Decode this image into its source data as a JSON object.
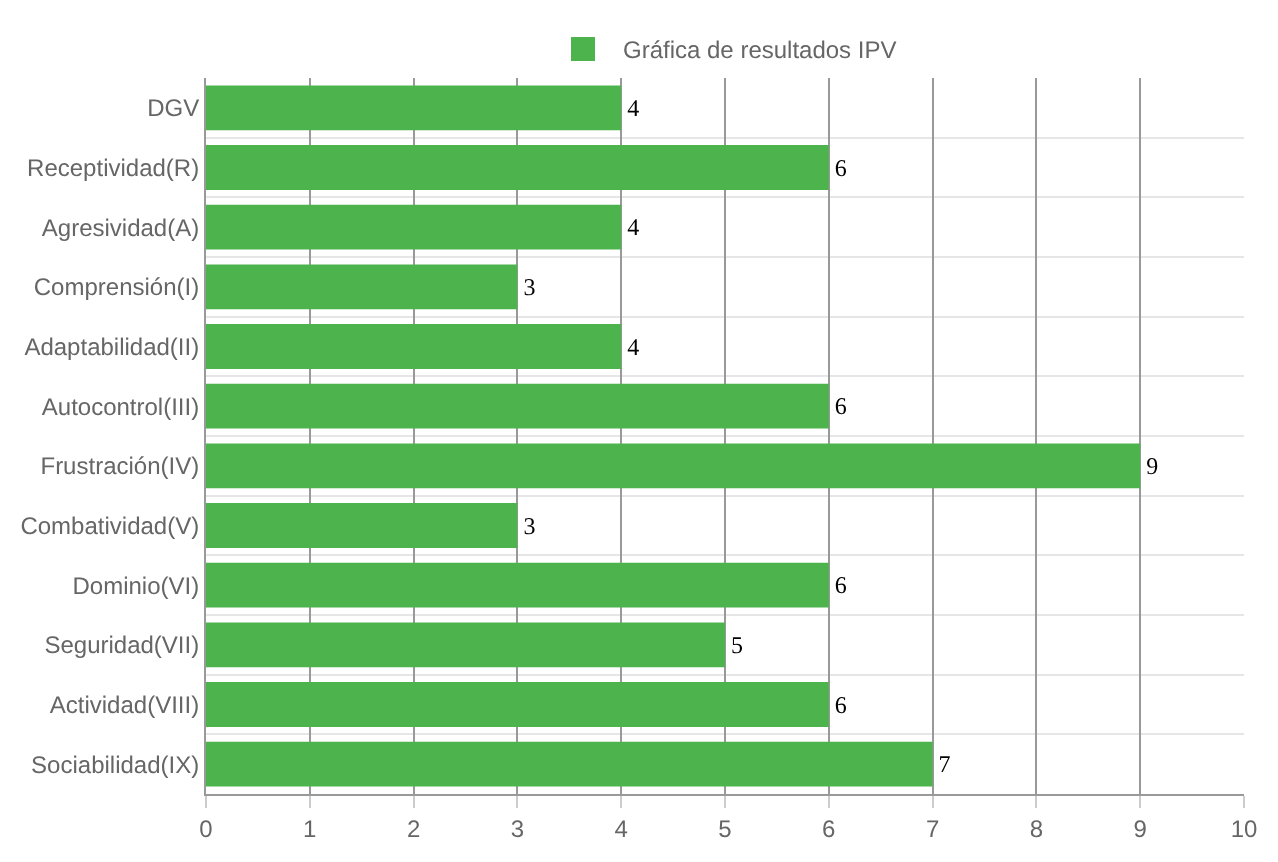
{
  "chart_data": {
    "type": "bar",
    "orientation": "horizontal",
    "categories": [
      "DGV",
      "Receptividad(R)",
      "Agresividad(A)",
      "Comprensión(I)",
      "Adaptabilidad(II)",
      "Autocontrol(III)",
      "Frustración(IV)",
      "Combatividad(V)",
      "Dominio(VI)",
      "Seguridad(VII)",
      "Actividad(VIII)",
      "Sociabilidad(IX)"
    ],
    "series": [
      {
        "name": "Gráfica de resultados IPV",
        "color": "#4db34d",
        "values": [
          4,
          6,
          4,
          3,
          4,
          6,
          9,
          3,
          6,
          5,
          6,
          7
        ]
      }
    ],
    "xlim": [
      0,
      10
    ],
    "xticks": [
      0,
      1,
      2,
      3,
      4,
      5,
      6,
      7,
      8,
      9,
      10
    ],
    "data_labels": true,
    "grid": true,
    "legend": "top"
  }
}
